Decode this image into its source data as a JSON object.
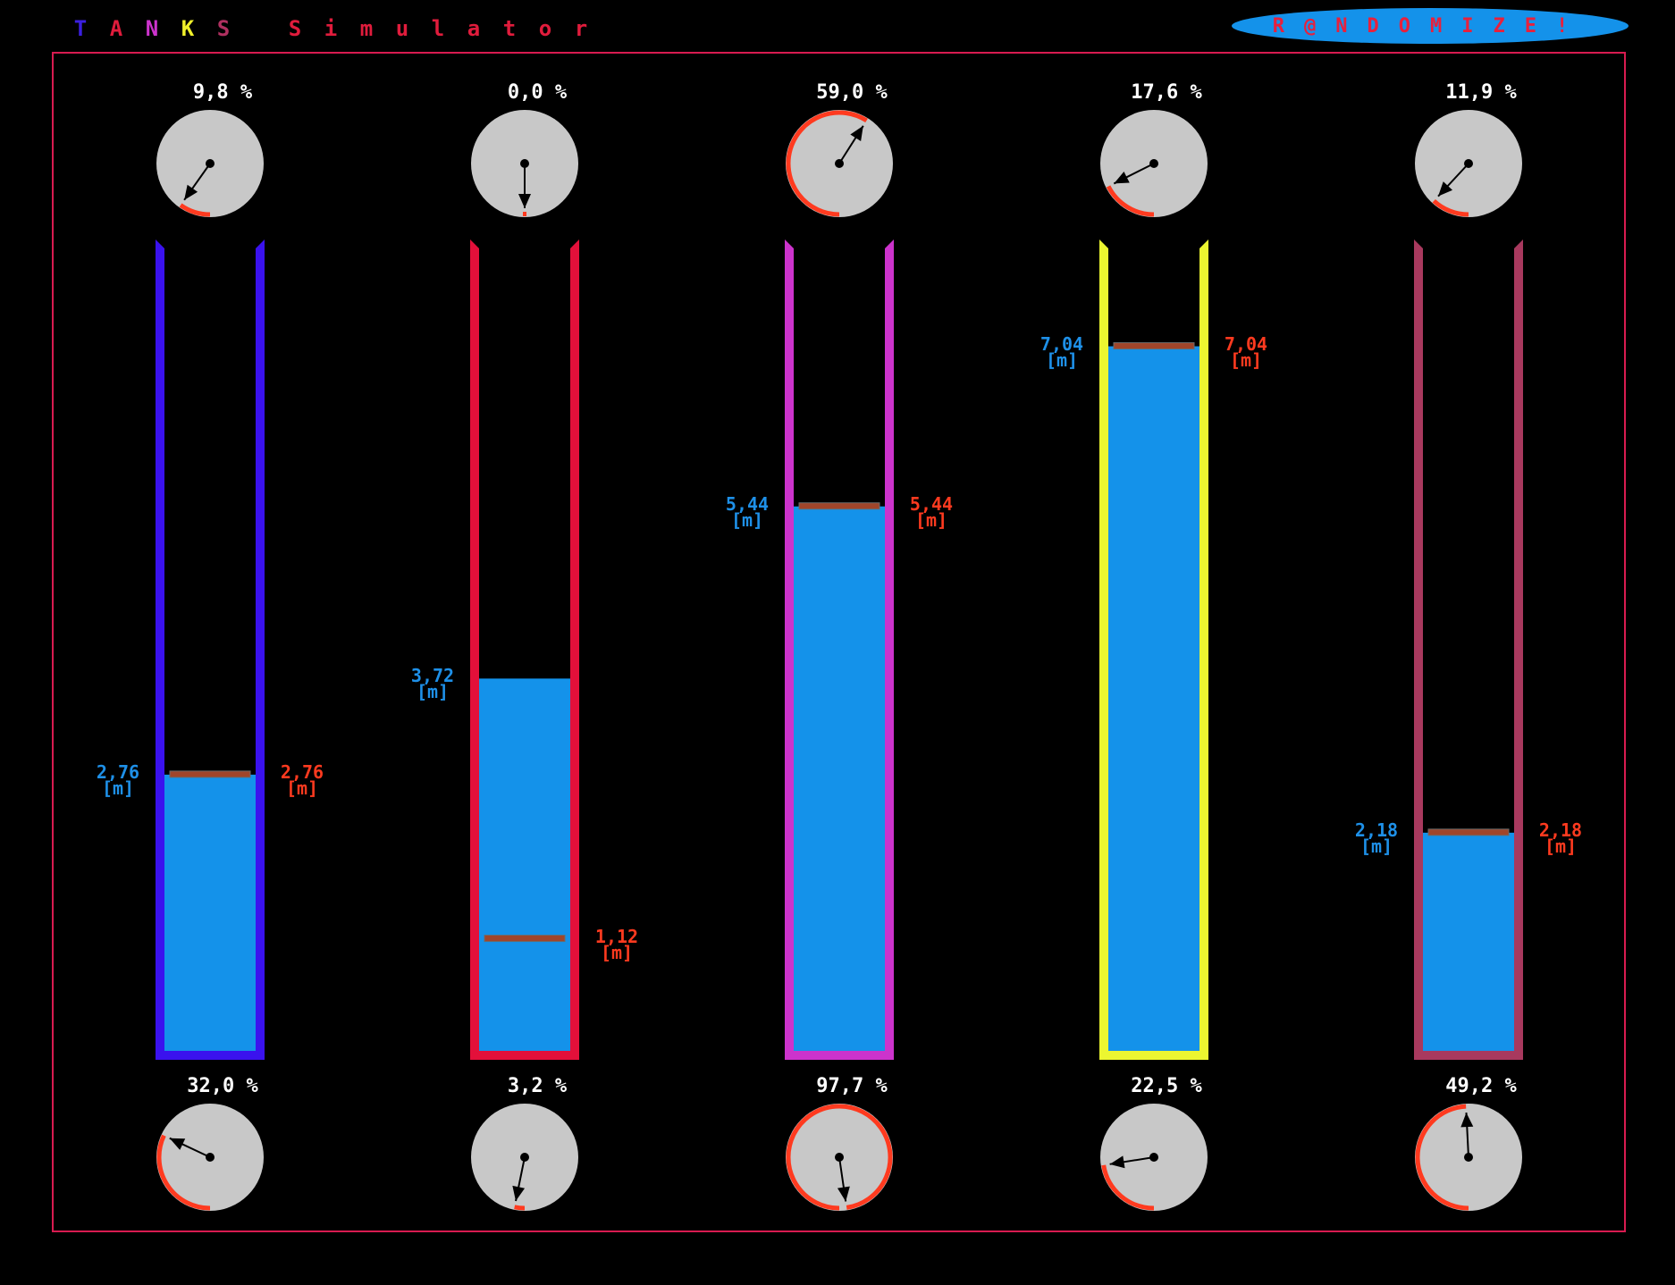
{
  "app": {
    "title_letters": [
      "T",
      "A",
      "N",
      "K",
      "S",
      " ",
      "S",
      "i",
      "m",
      "u",
      "l",
      "a",
      "t",
      "o",
      "r"
    ],
    "title_colors": [
      "#3b1fe0",
      "#e01c3c",
      "#cc33cc",
      "#f0f02a",
      "#b03060",
      "#000000",
      "#e01c3c",
      "#e01c3c",
      "#e01c3c",
      "#e01c3c",
      "#e01c3c",
      "#e01c3c",
      "#e01c3c",
      "#e01c3c",
      "#e01c3c"
    ],
    "randomize_label": "R@NDOMIZE!",
    "unit": "[m]"
  },
  "colors": {
    "frame": "#d81b50",
    "water": "#1492ea",
    "marker": "#a0452a",
    "gauge_face": "#c8c8c8",
    "gauge_arc": "#ff3a1f",
    "actual_text": "#1e90e8",
    "setpoint_text": "#ff3a1f"
  },
  "tanks": [
    {
      "color": "#3a12ee",
      "top_gauge_pct": "9,8 %",
      "top_gauge_value": 9.8,
      "bottom_gauge_pct": "32,0 %",
      "bottom_gauge_value": 32.0,
      "level_value": 2.76,
      "level_label": "2,76",
      "setpoint_value": 2.76,
      "setpoint_label": "2,76",
      "max_level": 8.0
    },
    {
      "color": "#e3103a",
      "top_gauge_pct": "0,0 %",
      "top_gauge_value": 0.0,
      "bottom_gauge_pct": "3,2 %",
      "bottom_gauge_value": 3.2,
      "level_value": 3.72,
      "level_label": "3,72",
      "setpoint_value": 1.12,
      "setpoint_label": "1,12",
      "max_level": 8.0
    },
    {
      "color": "#cc33cc",
      "top_gauge_pct": "59,0 %",
      "top_gauge_value": 59.0,
      "bottom_gauge_pct": "97,7 %",
      "bottom_gauge_value": 97.7,
      "level_value": 5.44,
      "level_label": "5,44",
      "setpoint_value": 5.44,
      "setpoint_label": "5,44",
      "max_level": 8.0
    },
    {
      "color": "#ecf630",
      "top_gauge_pct": "17,6 %",
      "top_gauge_value": 17.6,
      "bottom_gauge_pct": "22,5 %",
      "bottom_gauge_value": 22.5,
      "level_value": 7.04,
      "level_label": "7,04",
      "setpoint_value": 7.04,
      "setpoint_label": "7,04",
      "max_level": 8.0
    },
    {
      "color": "#a8395e",
      "top_gauge_pct": "11,9 %",
      "top_gauge_value": 11.9,
      "bottom_gauge_pct": "49,2 %",
      "bottom_gauge_value": 49.2,
      "level_value": 2.18,
      "level_label": "2,18",
      "setpoint_value": 2.18,
      "setpoint_label": "2,18",
      "max_level": 8.0
    }
  ]
}
